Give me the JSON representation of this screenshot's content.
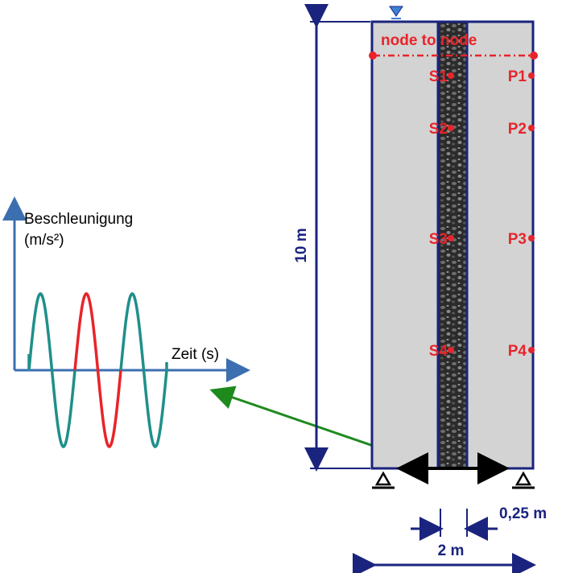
{
  "graph": {
    "y_label_line1": "Beschleunigung",
    "y_label_line2": "(m/s²)",
    "x_label": "Zeit (s)"
  },
  "column": {
    "height_label": "10 m",
    "line_label": "node to node",
    "soil_points": [
      "S1",
      "S2",
      "S3",
      "S4"
    ],
    "pile_points": [
      "P1",
      "P2",
      "P3",
      "P4"
    ],
    "stone_width_label": "0,25 m",
    "width_label": "2 m"
  }
}
